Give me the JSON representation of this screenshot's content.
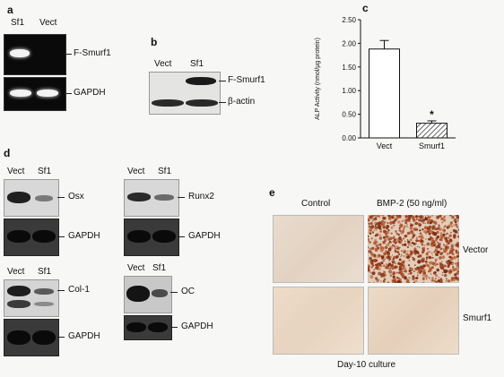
{
  "panel_a": {
    "letter": "a",
    "lanes": [
      "Sf1",
      "Vect"
    ],
    "bands": [
      "F-Smurf1",
      "GAPDH"
    ]
  },
  "panel_b": {
    "letter": "b",
    "lanes": [
      "Vect",
      "Sf1"
    ],
    "bands": [
      "F-Smurf1",
      "β-actin"
    ]
  },
  "panel_c": {
    "letter": "c",
    "chart_data": {
      "type": "bar",
      "categories": [
        "Vect",
        "Smurf1"
      ],
      "values": [
        1.88,
        0.31
      ],
      "errors": [
        0.18,
        0.05
      ],
      "ylabel": "ALP Activity (nmol/µg protein)",
      "ylim": [
        0,
        2.5
      ],
      "yticks": [
        "0.00",
        "0.50",
        "1.00",
        "1.50",
        "2.00",
        "2.50"
      ],
      "annotation": "*"
    }
  },
  "panel_d": {
    "letter": "d",
    "blots": [
      {
        "lanes": [
          "Vect",
          "Sf1"
        ],
        "gene": "Osx",
        "control": "GAPDH"
      },
      {
        "lanes": [
          "Vect",
          "Sf1"
        ],
        "gene": "Runx2",
        "control": "GAPDH"
      },
      {
        "lanes": [
          "Vect",
          "Sf1"
        ],
        "gene": "Col-1",
        "control": "GAPDH"
      },
      {
        "lanes": [
          "Vect",
          "Sf1"
        ],
        "gene": "OC",
        "control": "GAPDH"
      }
    ]
  },
  "panel_e": {
    "letter": "e",
    "columns": [
      "Control",
      "BMP-2 (50 ng/ml)"
    ],
    "rows": [
      "Vector",
      "Smurf1"
    ],
    "caption": "Day-10 culture"
  }
}
